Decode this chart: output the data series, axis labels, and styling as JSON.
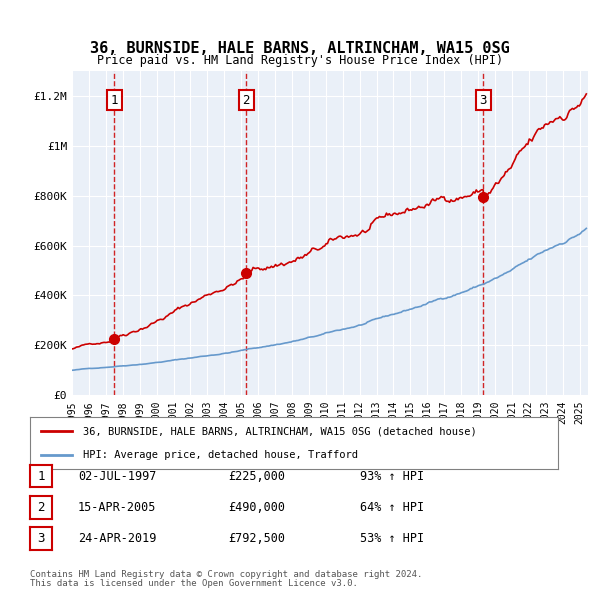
{
  "title": "36, BURNSIDE, HALE BARNS, ALTRINCHAM, WA15 0SG",
  "subtitle": "Price paid vs. HM Land Registry's House Price Index (HPI)",
  "sale_labels": [
    "1",
    "2",
    "3"
  ],
  "sale_dates_num": [
    1997.5,
    2005.29,
    2019.31
  ],
  "sale_prices": [
    225000,
    490000,
    792500
  ],
  "legend_entries": [
    "36, BURNSIDE, HALE BARNS, ALTRINCHAM, WA15 0SG (detached house)",
    "HPI: Average price, detached house, Trafford"
  ],
  "table_rows": [
    [
      "1",
      "02-JUL-1997",
      "£225,000",
      "93% ↑ HPI"
    ],
    [
      "2",
      "15-APR-2005",
      "£490,000",
      "64% ↑ HPI"
    ],
    [
      "3",
      "24-APR-2019",
      "£792,500",
      "53% ↑ HPI"
    ]
  ],
  "footnote1": "Contains HM Land Registry data © Crown copyright and database right 2024.",
  "footnote2": "This data is licensed under the Open Government Licence v3.0.",
  "hpi_color": "#6699cc",
  "price_color": "#cc0000",
  "plot_bg_color": "#eaf0f8",
  "ylim": [
    0,
    1300000
  ],
  "xlim_start": 1995.0,
  "xlim_end": 2025.5,
  "yticks": [
    0,
    200000,
    400000,
    600000,
    800000,
    1000000,
    1200000
  ],
  "ytick_labels": [
    "£0",
    "£200K",
    "£400K",
    "£600K",
    "£800K",
    "£1M",
    "£1.2M"
  ],
  "xticks": [
    1995,
    1996,
    1997,
    1998,
    1999,
    2000,
    2001,
    2002,
    2003,
    2004,
    2005,
    2006,
    2007,
    2008,
    2009,
    2010,
    2011,
    2012,
    2013,
    2014,
    2015,
    2016,
    2017,
    2018,
    2019,
    2020,
    2021,
    2022,
    2023,
    2024,
    2025
  ]
}
